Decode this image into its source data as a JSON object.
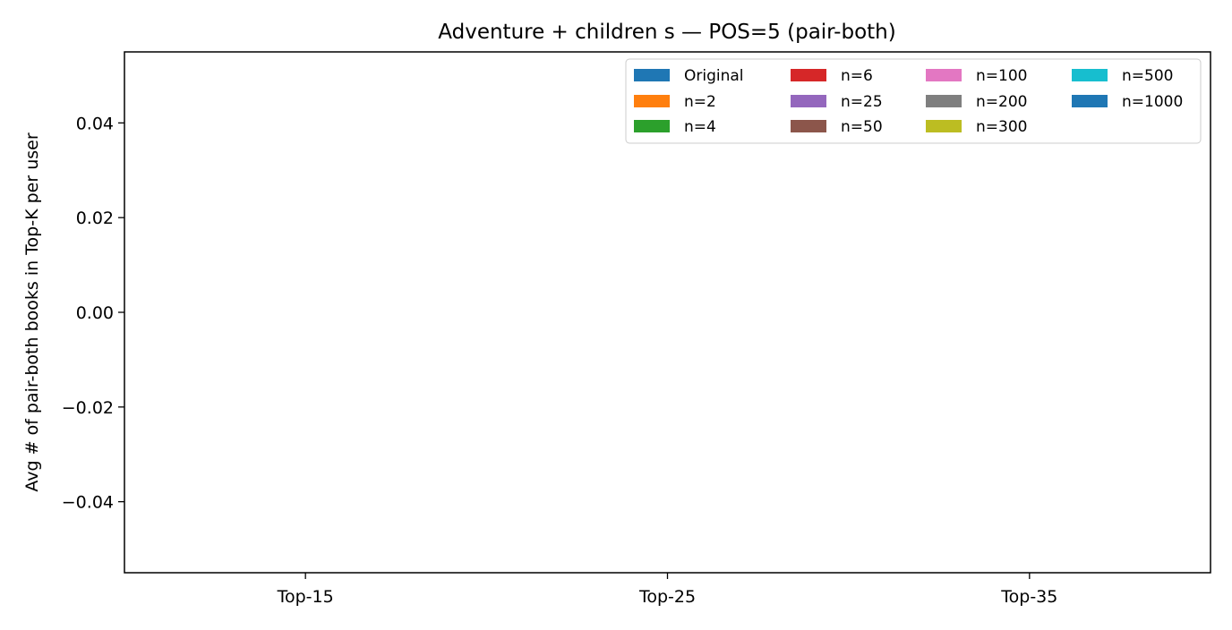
{
  "chart_data": {
    "type": "bar",
    "title": "Adventure + children s — POS=5 (pair-both)",
    "xlabel": "",
    "ylabel": "Avg # of pair-both books in Top-K per user",
    "categories": [
      "Top-15",
      "Top-25",
      "Top-35"
    ],
    "ylim": [
      -0.055,
      0.055
    ],
    "yticks": [
      -0.04,
      -0.02,
      0.0,
      0.02,
      0.04
    ],
    "ytick_labels": [
      "−0.04",
      "−0.02",
      "0.00",
      "0.02",
      "0.04"
    ],
    "grid": false,
    "legend_placement": "top-right",
    "legend_columns": 4,
    "series": [
      {
        "name": "Original",
        "color": "#1f77b4",
        "values": [
          0,
          0,
          0
        ]
      },
      {
        "name": "n=2",
        "color": "#ff7f0e",
        "values": [
          0,
          0,
          0
        ]
      },
      {
        "name": "n=4",
        "color": "#2ca02c",
        "values": [
          0,
          0,
          0
        ]
      },
      {
        "name": "n=6",
        "color": "#d62728",
        "values": [
          0,
          0,
          0
        ]
      },
      {
        "name": "n=25",
        "color": "#9467bd",
        "values": [
          0,
          0,
          0
        ]
      },
      {
        "name": "n=50",
        "color": "#8c564b",
        "values": [
          0,
          0,
          0
        ]
      },
      {
        "name": "n=100",
        "color": "#e377c2",
        "values": [
          0,
          0,
          0
        ]
      },
      {
        "name": "n=200",
        "color": "#7f7f7f",
        "values": [
          0,
          0,
          0
        ]
      },
      {
        "name": "n=300",
        "color": "#bcbd22",
        "values": [
          0,
          0,
          0
        ]
      },
      {
        "name": "n=500",
        "color": "#17becf",
        "values": [
          0,
          0,
          0
        ]
      },
      {
        "name": "n=1000",
        "color": "#1f77b4",
        "values": [
          0,
          0,
          0
        ]
      }
    ]
  }
}
